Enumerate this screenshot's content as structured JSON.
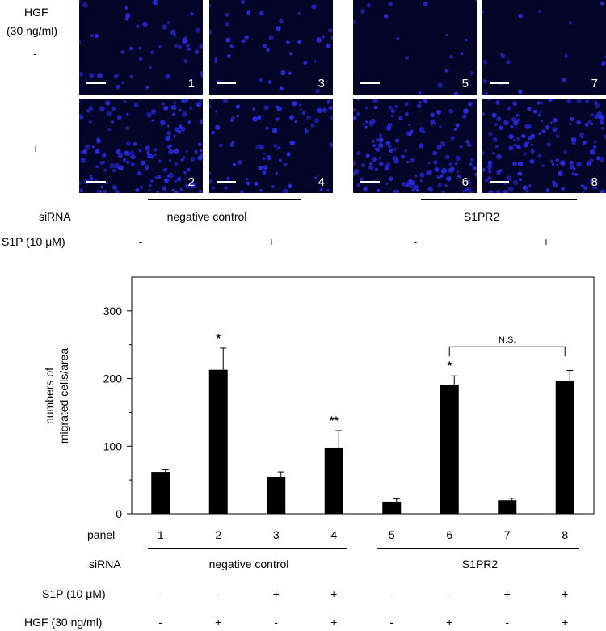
{
  "micrographs": {
    "hgf_label_line1": "HGF",
    "hgf_label_line2": "(30 ng/ml)",
    "row_labels": [
      "-",
      "+"
    ],
    "panels": [
      "1",
      "2",
      "3",
      "4",
      "5",
      "6",
      "7",
      "8"
    ],
    "groups": {
      "sirna_label": "siRNA",
      "s1p_label": "S1P (10 μM)",
      "group1_name": "negative control",
      "group2_name": "S1PR2",
      "s1p_values": [
        "-",
        "+",
        "-",
        "+"
      ]
    },
    "colors": {
      "background": "#05052a",
      "nuclei": "#2a2ae0"
    }
  },
  "chart_data": {
    "type": "bar",
    "categories": [
      "1",
      "2",
      "3",
      "4",
      "5",
      "6",
      "7",
      "8"
    ],
    "values": [
      62,
      213,
      55,
      98,
      18,
      191,
      20,
      197
    ],
    "errors": [
      3,
      32,
      7,
      25,
      4,
      13,
      3,
      15
    ],
    "ylabel_line1": "numbers of",
    "ylabel_line2": "migrated cells/area",
    "ylim": [
      0,
      350
    ],
    "yticks": [
      "0",
      "100",
      "200",
      "300"
    ],
    "significance": [
      "",
      "*",
      "",
      "**",
      "",
      "*",
      "",
      ""
    ],
    "bracket": {
      "from": "6",
      "to": "8",
      "label": "N.S."
    },
    "bar_color": "#000000"
  },
  "table": {
    "panel_label": "panel",
    "sirna_label": "siRNA",
    "s1p_label": "S1P (10 μM)",
    "hgf_label": "HGF (30 ng/ml)",
    "group1_name": "negative control",
    "group2_name": "S1PR2",
    "s1p_values": [
      "-",
      "-",
      "+",
      "+",
      "-",
      "-",
      "+",
      "+"
    ],
    "hgf_values": [
      "-",
      "+",
      "-",
      "+",
      "-",
      "+",
      "-",
      "+"
    ]
  }
}
